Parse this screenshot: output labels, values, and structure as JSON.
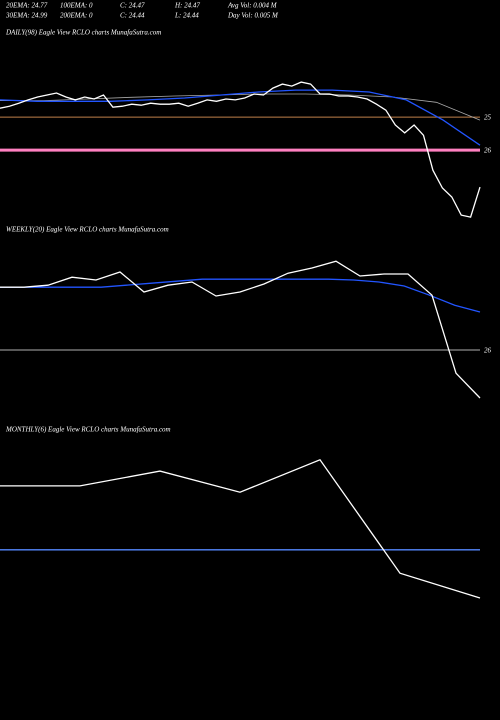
{
  "header": [
    "20EMA: 24.77",
    "100EMA: 0",
    "C: 24.47",
    "H: 24.47",
    "Avg Vol: 0.004 M",
    "30EMA: 24.99",
    "200EMA: 0",
    "C: 24.44",
    "L: 24.44",
    "Day Vol: 0.005 M"
  ],
  "chart_data": [
    {
      "type": "line",
      "title": "DAILY(98) Eagle View  RCLO charts MunafaSutra.com",
      "ylim": [
        28.27,
        22.36
      ],
      "yticks": [
        25,
        26
      ],
      "grid_colors": [
        "#c0804a",
        "#ff80c0"
      ],
      "series": [
        {
          "color": "#aaaaaa",
          "values": [
            24.5,
            24.5,
            24.45,
            24.4,
            24.36,
            24.33,
            24.3,
            24.3,
            24.33,
            24.39,
            24.55,
            25.09
          ]
        },
        {
          "color": "#2255ff",
          "values": [
            24.48,
            24.52,
            24.52,
            24.52,
            24.48,
            24.42,
            24.33,
            24.24,
            24.18,
            24.18,
            24.24,
            24.48,
            25.09,
            25.85
          ]
        },
        {
          "color": "#ffffff",
          "values": [
            24.73,
            24.67,
            24.58,
            24.48,
            24.39,
            24.33,
            24.27,
            24.39,
            24.48,
            24.39,
            24.45,
            24.33,
            24.7,
            24.67,
            24.61,
            24.64,
            24.58,
            24.61,
            24.61,
            24.58,
            24.67,
            24.58,
            24.48,
            24.52,
            24.45,
            24.48,
            24.42,
            24.3,
            24.33,
            24.12,
            24.0,
            24.06,
            23.94,
            24.0,
            24.3,
            24.3,
            24.36,
            24.36,
            24.39,
            24.45,
            24.61,
            24.79,
            25.24,
            25.48,
            25.24,
            25.55,
            26.61,
            27.15,
            27.42,
            27.97,
            28.03,
            27.12
          ]
        }
      ]
    },
    {
      "type": "line",
      "title": "WEEKLY(20) Eagle View  RCLO charts MunafaSutra.com",
      "ylim": [
        27.25,
        23.25
      ],
      "yticks": [
        26
      ],
      "grid_colors": [
        "#b0b0b0"
      ],
      "series": [
        {
          "color": "#2255ff",
          "values": [
            24.43,
            24.43,
            24.43,
            24.43,
            24.43,
            24.38,
            24.33,
            24.28,
            24.23,
            24.23,
            24.23,
            24.23,
            24.23,
            24.23,
            24.25,
            24.3,
            24.4,
            24.63,
            24.88,
            25.05
          ]
        },
        {
          "color": "#ffffff",
          "values": [
            24.43,
            24.43,
            24.38,
            24.18,
            24.25,
            24.05,
            24.55,
            24.38,
            24.3,
            24.65,
            24.55,
            24.35,
            24.08,
            23.95,
            23.78,
            24.15,
            24.1,
            24.1,
            24.63,
            26.58,
            27.2
          ]
        }
      ]
    },
    {
      "type": "line",
      "title": "MONTHLY(6) Eagle View  RCLO charts MunafaSutra.com",
      "ylim": [
        27.5,
        23.5
      ],
      "yticks": [],
      "grid_colors": [],
      "series": [
        {
          "color": "#5588ff",
          "values": [
            25.94,
            25.94
          ]
        },
        {
          "color": "#ffffff",
          "values": [
            24.52,
            24.52,
            24.19,
            24.66,
            23.94,
            26.46,
            27.01
          ]
        }
      ]
    }
  ]
}
